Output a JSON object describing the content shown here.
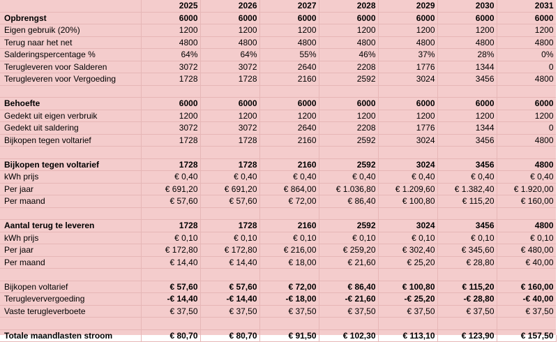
{
  "years": [
    "2025",
    "2026",
    "2027",
    "2028",
    "2029",
    "2030",
    "2031"
  ],
  "rows": [
    {
      "label": "Opbrengst",
      "bold": true,
      "values": [
        "6000",
        "6000",
        "6000",
        "6000",
        "6000",
        "6000",
        "6000"
      ]
    },
    {
      "label": "Eigen gebruik (20%)",
      "values": [
        "1200",
        "1200",
        "1200",
        "1200",
        "1200",
        "1200",
        "1200"
      ]
    },
    {
      "label": "Terug naar het net",
      "values": [
        "4800",
        "4800",
        "4800",
        "4800",
        "4800",
        "4800",
        "4800"
      ]
    },
    {
      "label": "Salderingspercentage %",
      "values": [
        "64%",
        "64%",
        "55%",
        "46%",
        "37%",
        "28%",
        "0%"
      ]
    },
    {
      "label": "Terugleveren voor Salderen",
      "values": [
        "3072",
        "3072",
        "2640",
        "2208",
        "1776",
        "1344",
        "0"
      ]
    },
    {
      "label": "Terugleveren voor Vergoeding",
      "values": [
        "1728",
        "1728",
        "2160",
        "2592",
        "3024",
        "3456",
        "4800"
      ]
    },
    {
      "label": "",
      "values": [
        "",
        "",
        "",
        "",
        "",
        "",
        ""
      ]
    },
    {
      "label": "Behoefte",
      "bold": true,
      "values": [
        "6000",
        "6000",
        "6000",
        "6000",
        "6000",
        "6000",
        "6000"
      ]
    },
    {
      "label": "Gedekt uit eigen verbruik",
      "values": [
        "1200",
        "1200",
        "1200",
        "1200",
        "1200",
        "1200",
        "1200"
      ]
    },
    {
      "label": "Gedekt uit saldering",
      "values": [
        "3072",
        "3072",
        "2640",
        "2208",
        "1776",
        "1344",
        "0"
      ]
    },
    {
      "label": "Bijkopen tegen voltarief",
      "values": [
        "1728",
        "1728",
        "2160",
        "2592",
        "3024",
        "3456",
        "4800"
      ]
    },
    {
      "label": "",
      "values": [
        "",
        "",
        "",
        "",
        "",
        "",
        ""
      ]
    },
    {
      "label": "Bijkopen tegen voltarief",
      "bold": true,
      "values": [
        "1728",
        "1728",
        "2160",
        "2592",
        "3024",
        "3456",
        "4800"
      ]
    },
    {
      "label": "kWh prijs",
      "values": [
        "€ 0,40",
        "€ 0,40",
        "€ 0,40",
        "€ 0,40",
        "€ 0,40",
        "€ 0,40",
        "€ 0,40"
      ]
    },
    {
      "label": "Per jaar",
      "values": [
        "€ 691,20",
        "€ 691,20",
        "€ 864,00",
        "€ 1.036,80",
        "€ 1.209,60",
        "€ 1.382,40",
        "€ 1.920,00"
      ]
    },
    {
      "label": "Per maand",
      "values": [
        "€ 57,60",
        "€ 57,60",
        "€ 72,00",
        "€ 86,40",
        "€ 100,80",
        "€ 115,20",
        "€ 160,00"
      ]
    },
    {
      "label": "",
      "values": [
        "",
        "",
        "",
        "",
        "",
        "",
        ""
      ]
    },
    {
      "label": "Aantal terug te leveren",
      "bold": true,
      "values": [
        "1728",
        "1728",
        "2160",
        "2592",
        "3024",
        "3456",
        "4800"
      ]
    },
    {
      "label": "kWh prijs",
      "values": [
        "€ 0,10",
        "€ 0,10",
        "€ 0,10",
        "€ 0,10",
        "€ 0,10",
        "€ 0,10",
        "€ 0,10"
      ]
    },
    {
      "label": "Per jaar",
      "values": [
        "€ 172,80",
        "€ 172,80",
        "€ 216,00",
        "€ 259,20",
        "€ 302,40",
        "€ 345,60",
        "€ 480,00"
      ]
    },
    {
      "label": "Per maand",
      "values": [
        "€ 14,40",
        "€ 14,40",
        "€ 18,00",
        "€ 21,60",
        "€ 25,20",
        "€ 28,80",
        "€ 40,00"
      ]
    },
    {
      "label": "",
      "values": [
        "",
        "",
        "",
        "",
        "",
        "",
        ""
      ]
    },
    {
      "label": "Bijkopen voltarief",
      "boldValues": true,
      "topline": true,
      "values": [
        "€ 57,60",
        "€ 57,60",
        "€ 72,00",
        "€ 86,40",
        "€ 100,80",
        "€ 115,20",
        "€ 160,00"
      ]
    },
    {
      "label": "Terugleververgoeding",
      "boldValues": true,
      "values": [
        "-€ 14,40",
        "-€ 14,40",
        "-€ 18,00",
        "-€ 21,60",
        "-€ 25,20",
        "-€ 28,80",
        "-€ 40,00"
      ]
    },
    {
      "label": "Vaste terugleverboete",
      "values": [
        "€ 37,50",
        "€ 37,50",
        "€ 37,50",
        "€ 37,50",
        "€ 37,50",
        "€ 37,50",
        "€ 37,50"
      ]
    },
    {
      "label": "",
      "values": [
        "",
        "",
        "",
        "",
        "",
        "",
        ""
      ]
    },
    {
      "label": "Totale maandlasten stroom",
      "bold": true,
      "total": true,
      "values": [
        "€ 80,70",
        "€ 80,70",
        "€ 91,50",
        "€ 102,30",
        "€ 113,10",
        "€ 123,90",
        "€ 157,50"
      ]
    }
  ]
}
